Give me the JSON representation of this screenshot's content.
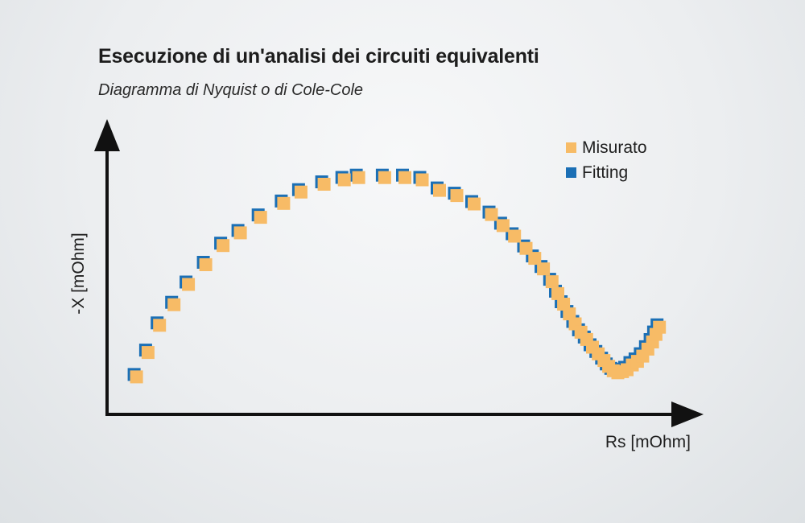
{
  "header": {
    "title": "Esecuzione di un'analisi dei circuiti equivalenti",
    "subtitle": "Diagramma di Nyquist o di Cole-Cole"
  },
  "chart_data": {
    "type": "scatter",
    "title": "Esecuzione di un'analisi dei circuiti equivalenti",
    "subtitle": "Diagramma di Nyquist o di Cole-Cole",
    "xlabel": "Rs [mOhm]",
    "ylabel": "-X [mOhm]",
    "xlim": [
      0,
      100
    ],
    "ylim": [
      0,
      100
    ],
    "grid": false,
    "legend_position": "top-right",
    "series": [
      {
        "name": "Misurato",
        "color": "#f7bb66",
        "marker": "square",
        "x": [
          5.1,
          7.1,
          9.1,
          11.6,
          14.1,
          17.1,
          20.1,
          23.1,
          26.6,
          30.6,
          33.6,
          37.6,
          41.1,
          43.6,
          48.1,
          51.6,
          54.6,
          57.6,
          60.6,
          63.6,
          66.6,
          68.6,
          70.6,
          72.6,
          74.1,
          75.6,
          77.1,
          78.1,
          79.1,
          80.1,
          81.1,
          82.1,
          83.1,
          84.1,
          85.1,
          86.1,
          86.9,
          87.7,
          88.5,
          89.3,
          90.1,
          91.0,
          91.9,
          92.8,
          93.7,
          94.5,
          95.1,
          95.7
        ],
        "y": [
          13.5,
          22.3,
          32.1,
          39.5,
          46.8,
          53.9,
          60.8,
          65.4,
          71.0,
          76.0,
          80.1,
          82.9,
          84.5,
          85.3,
          85.3,
          85.3,
          84.5,
          80.7,
          78.8,
          75.8,
          72.0,
          68.0,
          64.2,
          59.8,
          56.2,
          52.4,
          47.8,
          43.5,
          39.7,
          36.2,
          32.6,
          29.6,
          27.0,
          24.2,
          21.8,
          19.4,
          17.3,
          15.7,
          15.0,
          15.4,
          16.1,
          17.8,
          19.1,
          21.0,
          23.5,
          26.1,
          28.8,
          31.4
        ]
      },
      {
        "name": "Fitting",
        "color": "#1b6fb5",
        "marker": "square",
        "x": [
          5.1,
          7.1,
          9.1,
          11.6,
          14.1,
          17.1,
          20.1,
          23.1,
          26.6,
          30.6,
          33.6,
          37.6,
          41.1,
          43.6,
          48.1,
          51.6,
          54.6,
          57.6,
          60.6,
          63.6,
          66.6,
          68.6,
          70.6,
          72.6,
          74.1,
          75.6,
          77.1,
          78.1,
          79.1,
          80.1,
          81.1,
          82.1,
          83.1,
          84.1,
          85.1,
          86.1,
          86.9,
          87.7,
          88.5,
          89.3,
          90.1,
          91.0,
          91.9,
          92.8,
          93.7,
          94.5,
          95.1,
          95.7
        ],
        "y": [
          13.5,
          22.3,
          32.1,
          39.5,
          46.8,
          53.9,
          60.8,
          65.4,
          71.0,
          76.0,
          80.1,
          82.9,
          84.5,
          85.3,
          85.3,
          85.3,
          84.5,
          80.7,
          78.8,
          75.8,
          72.0,
          68.0,
          64.2,
          59.8,
          56.2,
          52.4,
          47.8,
          43.5,
          39.7,
          36.2,
          32.6,
          29.6,
          27.0,
          24.2,
          21.8,
          19.4,
          17.3,
          15.7,
          15.0,
          15.4,
          16.1,
          17.8,
          19.1,
          21.0,
          23.5,
          26.1,
          28.8,
          31.4
        ]
      }
    ]
  },
  "colors": {
    "measured": "#f7bb66",
    "fitting": "#1b6fb5",
    "axis": "#111111",
    "text": "#1f1f1f"
  }
}
